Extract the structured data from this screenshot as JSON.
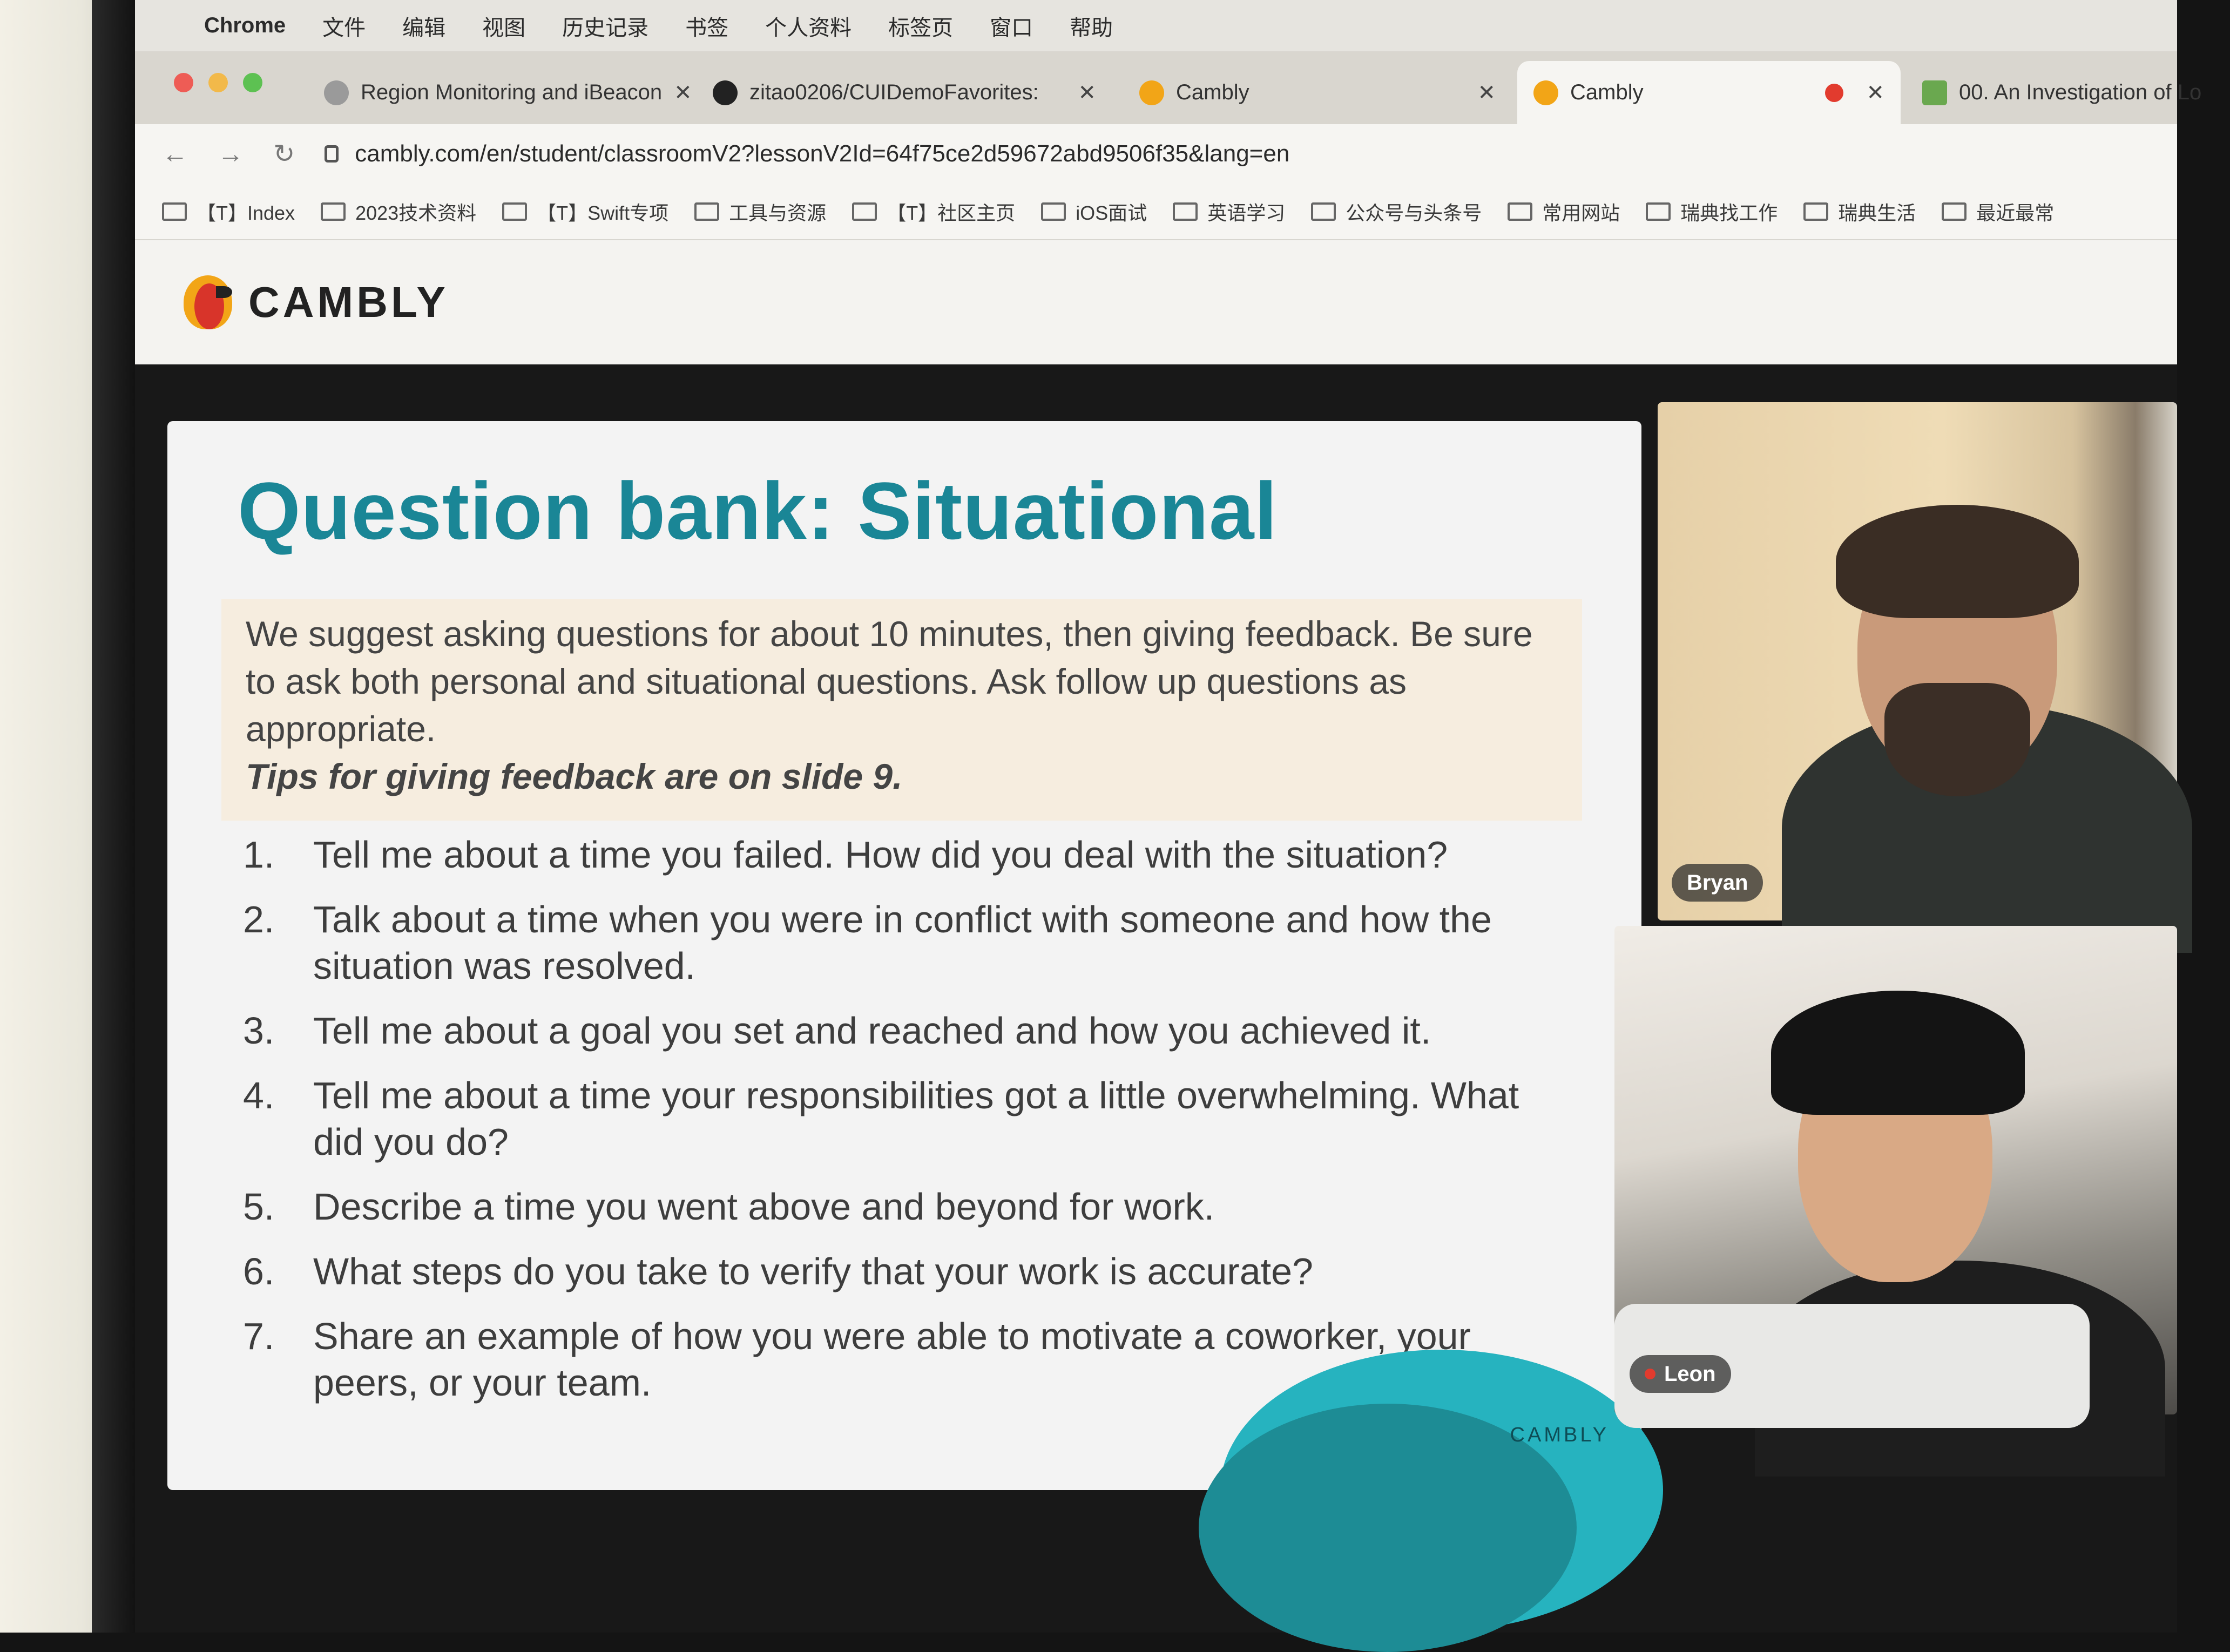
{
  "menubar": {
    "app": "Chrome",
    "items": [
      "文件",
      "编辑",
      "视图",
      "历史记录",
      "书签",
      "个人资料",
      "标签页",
      "窗口",
      "帮助"
    ]
  },
  "tabs": [
    {
      "title": "Region Monitoring and iBeacon",
      "favicon_color": "#9a9a9a"
    },
    {
      "title": "zitao0206/CUIDemoFavorites:",
      "favicon_color": "#222222"
    },
    {
      "title": "Cambly",
      "favicon_color": "#f2a517"
    },
    {
      "title": "Cambly",
      "favicon_color": "#f2a517",
      "active": true,
      "recording": true
    },
    {
      "title": "00. An Investigation of Lo",
      "favicon_color": "#6aa84f"
    }
  ],
  "address": {
    "url": "cambly.com/en/student/classroomV2?lessonV2Id=64f75ce2d59672abd9506f35&lang=en"
  },
  "bookmarks": [
    "【T】Index",
    "2023技术资料",
    "【T】Swift专项",
    "工具与资源",
    "【T】社区主页",
    "iOS面试",
    "英语学习",
    "公众号与头条号",
    "常用网站",
    "瑞典找工作",
    "瑞典生活",
    "最近最常"
  ],
  "site": {
    "logo_text": "CAMBLY",
    "brand_color": "#f2a517"
  },
  "slide": {
    "title": "Question bank: Situational",
    "intro": "We suggest asking questions for about 10 minutes, then giving feedback. Be sure to ask both personal and situational questions. Ask follow up questions as appropriate.",
    "tip": "Tips for giving feedback are on slide 9.",
    "questions": [
      {
        "num": "1.",
        "text": "Tell me about a time you failed. How did you deal with the situation?"
      },
      {
        "num": "2.",
        "text": "Talk about a time when you were in conflict with someone and how the situation was resolved."
      },
      {
        "num": "3.",
        "text": "Tell me about a goal you set and reached and how you achieved it."
      },
      {
        "num": "4.",
        "text": "Tell me about a time your responsibilities got a little overwhelming. What did you do?"
      },
      {
        "num": "5.",
        "text": "Describe a time you went above and beyond for work."
      },
      {
        "num": "6.",
        "text": "What steps do you take to verify that your work is accurate?"
      },
      {
        "num": "7.",
        "text": "Share an example of how you were able to motivate a coworker, your peers, or your team."
      }
    ],
    "brand": "CAMBLY",
    "title_color": "#1a8696"
  },
  "participants": [
    {
      "name": "Bryan"
    },
    {
      "name": "Leon",
      "muted": true
    }
  ]
}
